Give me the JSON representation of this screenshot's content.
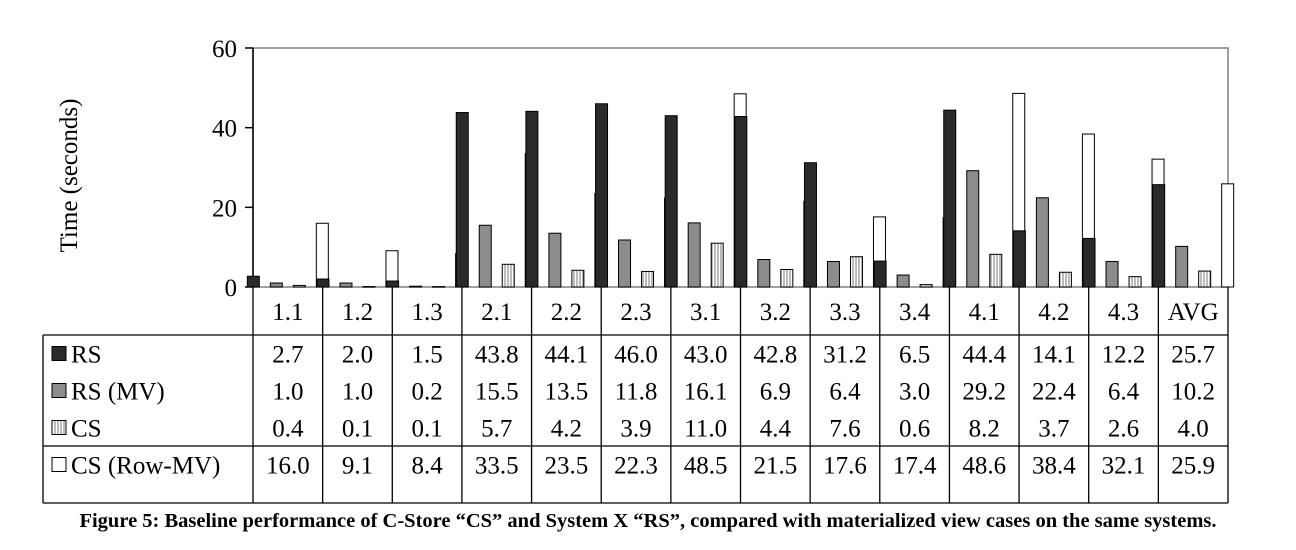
{
  "caption": "Figure 5: Baseline performance of C-Store “CS” and System X “RS”, compared with materialized view cases on the same systems.",
  "chart_data": {
    "type": "bar",
    "title": "",
    "xlabel": "",
    "ylabel": "Time (seconds)",
    "ylim": [
      0,
      60
    ],
    "yticks": [
      0,
      20,
      40,
      60
    ],
    "grid": false,
    "legend": "table-left",
    "categories": [
      "1.1",
      "1.2",
      "1.3",
      "2.1",
      "2.2",
      "2.3",
      "3.1",
      "3.2",
      "3.3",
      "3.4",
      "4.1",
      "4.2",
      "4.3",
      "AVG"
    ],
    "series": [
      {
        "name": "RS",
        "fill": "#2a2a2a",
        "pattern": "solid",
        "values": [
          2.7,
          2.0,
          1.5,
          43.8,
          44.1,
          46.0,
          43.0,
          42.8,
          31.2,
          6.5,
          44.4,
          14.1,
          12.2,
          25.7
        ]
      },
      {
        "name": "RS (MV)",
        "fill": "#8c8c8c",
        "pattern": "solid",
        "values": [
          1.0,
          1.0,
          0.2,
          15.5,
          13.5,
          11.8,
          16.1,
          6.9,
          6.4,
          3.0,
          29.2,
          22.4,
          6.4,
          10.2
        ]
      },
      {
        "name": "CS",
        "fill": "#ffffff",
        "pattern": "vertical-stripes",
        "values": [
          0.4,
          0.1,
          0.1,
          5.7,
          4.2,
          3.9,
          11.0,
          4.4,
          7.6,
          0.6,
          8.2,
          3.7,
          2.6,
          4.0
        ]
      },
      {
        "name": "CS (Row-MV)",
        "fill": "#ffffff",
        "pattern": "solid",
        "values": [
          16.0,
          9.1,
          8.4,
          33.5,
          23.5,
          22.3,
          48.5,
          21.5,
          17.6,
          17.4,
          48.6,
          38.4,
          32.1,
          25.9
        ]
      }
    ]
  }
}
